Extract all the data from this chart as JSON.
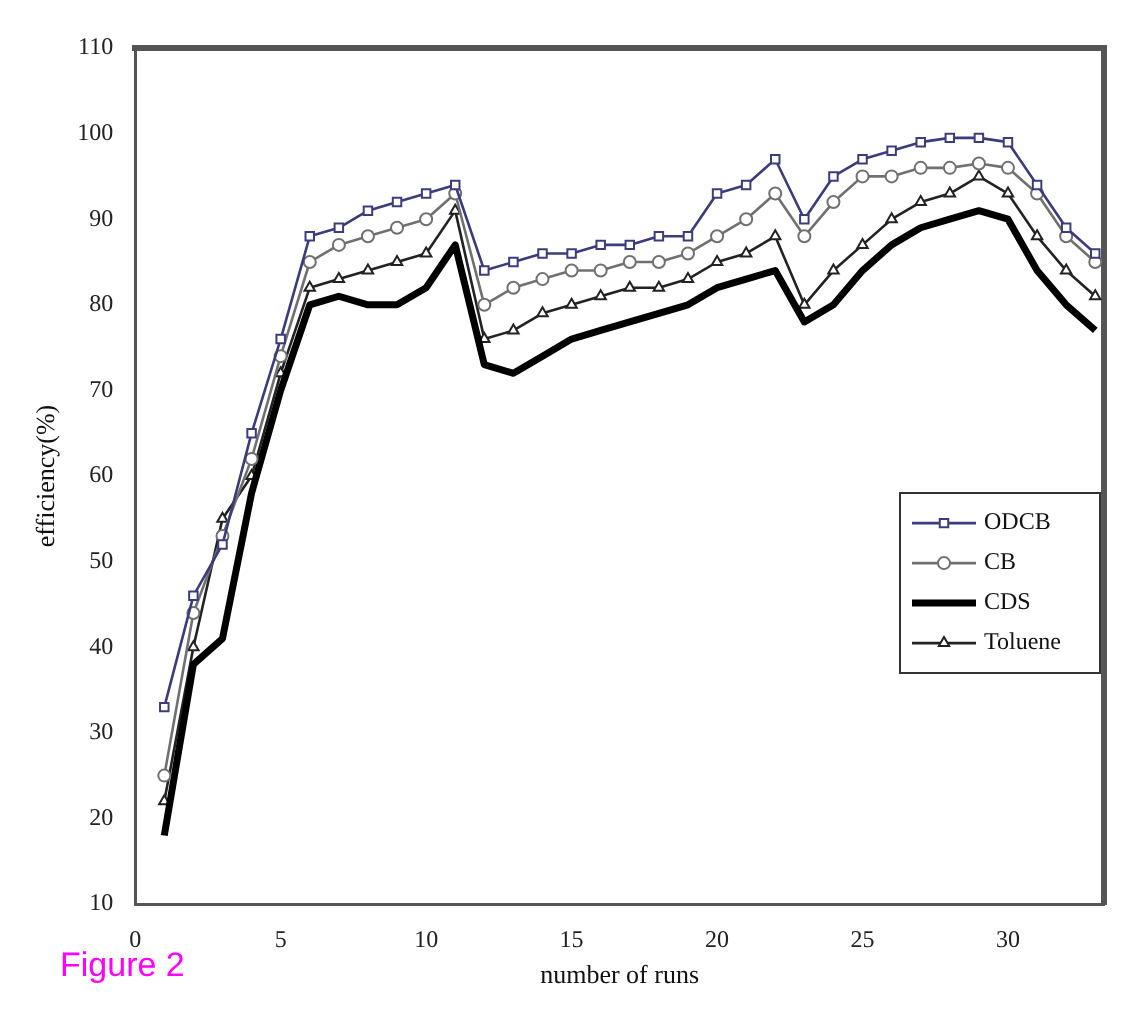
{
  "chart_data": {
    "type": "line",
    "xlabel": "number of runs",
    "ylabel": "efficiency(%)",
    "annotations": [
      "Figure 2"
    ],
    "x": [
      1,
      2,
      3,
      4,
      5,
      6,
      7,
      8,
      9,
      10,
      11,
      12,
      13,
      14,
      15,
      16,
      17,
      18,
      19,
      20,
      21,
      22,
      23,
      24,
      25,
      26,
      27,
      28,
      29,
      30,
      31,
      32,
      33
    ],
    "series": [
      {
        "name": "ODCB",
        "color": "#3c3c7a",
        "marker": "square",
        "values": [
          33,
          46,
          52,
          65,
          76,
          88,
          89,
          91,
          92,
          93,
          94,
          84,
          85,
          86,
          86,
          87,
          87,
          88,
          88,
          93,
          94,
          97,
          90,
          95,
          97,
          98,
          99,
          99.5,
          99.5,
          99,
          94,
          89,
          86
        ]
      },
      {
        "name": "CB",
        "color": "#707070",
        "marker": "circle",
        "values": [
          25,
          44,
          53,
          62,
          74,
          85,
          87,
          88,
          89,
          90,
          93,
          80,
          82,
          83,
          84,
          84,
          85,
          85,
          86,
          88,
          90,
          93,
          88,
          92,
          95,
          95,
          96,
          96,
          96.5,
          96,
          93,
          88,
          85
        ]
      },
      {
        "name": "CDS",
        "color": "#000000",
        "marker": "none",
        "values": [
          18,
          38,
          41,
          58,
          70,
          80,
          81,
          80,
          80,
          82,
          87,
          73,
          72,
          74,
          76,
          77,
          78,
          79,
          80,
          82,
          83,
          84,
          78,
          80,
          84,
          87,
          89,
          90,
          91,
          90,
          84,
          80,
          77
        ]
      },
      {
        "name": "Toluene",
        "color": "#222222",
        "marker": "triangle",
        "values": [
          22,
          40,
          55,
          60,
          72,
          82,
          83,
          84,
          85,
          86,
          91,
          76,
          77,
          79,
          80,
          81,
          82,
          82,
          83,
          85,
          86,
          88,
          80,
          84,
          87,
          90,
          92,
          93,
          95,
          93,
          88,
          84,
          81
        ]
      }
    ],
    "xlim": [
      0,
      33.3
    ],
    "xticks": [
      0,
      5,
      10,
      15,
      20,
      25,
      30
    ],
    "ylim": [
      10,
      110
    ],
    "yticks": [
      10,
      20,
      30,
      40,
      50,
      60,
      70,
      80,
      90,
      100,
      110
    ],
    "grid": false,
    "legend": "right",
    "line_style": "solid"
  }
}
